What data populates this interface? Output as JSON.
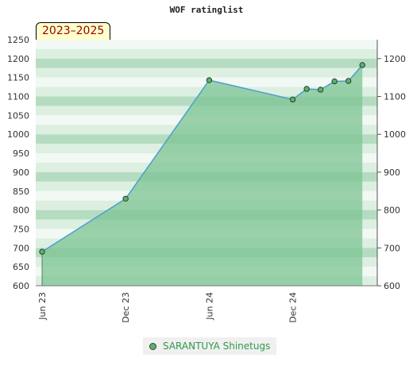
{
  "chart_data": {
    "type": "area",
    "title": "WOF ratinglist",
    "badge": "2023–2025",
    "ylim": [
      600,
      1250
    ],
    "left_ticks": [
      600,
      650,
      700,
      750,
      800,
      850,
      900,
      950,
      1000,
      1050,
      1100,
      1150,
      1200,
      1250
    ],
    "right_ticks": [
      600,
      700,
      800,
      900,
      1000,
      1100,
      1200
    ],
    "x_ticks": [
      {
        "label": "Jun 23",
        "month": 0
      },
      {
        "label": "Dec 23",
        "month": 6
      },
      {
        "label": "Jun 24",
        "month": 12
      },
      {
        "label": "Dec 24",
        "month": 18
      }
    ],
    "xlim_months": [
      0,
      23.5
    ],
    "series": [
      {
        "name": "SARANTUYA Shinetugs",
        "points": [
          {
            "month": 0,
            "value": 690
          },
          {
            "month": 6,
            "value": 830
          },
          {
            "month": 12,
            "value": 1143
          },
          {
            "month": 18,
            "value": 1092
          },
          {
            "month": 19,
            "value": 1120
          },
          {
            "month": 20,
            "value": 1118
          },
          {
            "month": 21,
            "value": 1140
          },
          {
            "month": 22,
            "value": 1141
          },
          {
            "month": 23,
            "value": 1183
          }
        ]
      }
    ],
    "grid": true,
    "legend_position": "bottom"
  },
  "colors": {
    "line": "#4c9fd0",
    "fill": "#7cc493",
    "band_light": "#f2f8f3",
    "band_mid": "#dcefe1",
    "band_dark": "#b5dcc0",
    "marker": "#5fae6e"
  }
}
